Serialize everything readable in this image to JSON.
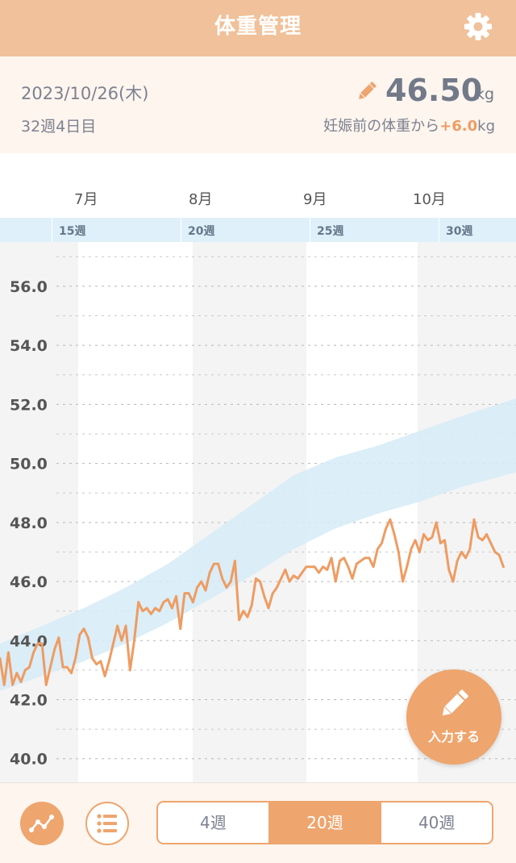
{
  "header": {
    "title": "体重管理",
    "settings_icon": "gear-icon"
  },
  "summary": {
    "date": "2023/10/26(木)",
    "week_day": "32週4日目",
    "weight": "46.50",
    "weight_unit": "kg",
    "delta_prefix": "妊娠前の体重から",
    "delta_value": "+6.0",
    "delta_unit": "kg",
    "edit_icon": "pencil-icon"
  },
  "timeline": {
    "months": [
      "7月",
      "8月",
      "9月",
      "10月"
    ],
    "weeks": [
      "15週",
      "20週",
      "25週",
      "30週"
    ]
  },
  "colors": {
    "accent": "#eea56e",
    "header": "#f0c19a",
    "range_band": "#d6ebf7",
    "line": "#ee9c63"
  },
  "chart_data": {
    "type": "line",
    "x_axis": "day",
    "xlim": [
      0,
      123
    ],
    "ylim": [
      39.2,
      57.5
    ],
    "yticks": [
      "56.0",
      "54.0",
      "52.0",
      "50.0",
      "48.0",
      "46.0",
      "44.0",
      "42.0",
      "40.0"
    ],
    "ytick_values": [
      56,
      54,
      52,
      50,
      48,
      46,
      44,
      42,
      40
    ],
    "grid": true,
    "band": {
      "name": "recommended range",
      "x": [
        0,
        10,
        20,
        30,
        40,
        50,
        60,
        70,
        80,
        90,
        100,
        110,
        123
      ],
      "lower": [
        42.3,
        42.8,
        43.3,
        43.9,
        44.6,
        45.4,
        46.2,
        47.1,
        47.8,
        48.3,
        48.7,
        49.2,
        49.7
      ],
      "upper": [
        43.9,
        44.5,
        45.1,
        45.8,
        46.6,
        47.6,
        48.6,
        49.6,
        50.2,
        50.6,
        51.1,
        51.6,
        52.2
      ]
    },
    "series": [
      {
        "values": [
          [
            0,
            43.4
          ],
          [
            1,
            42.5
          ],
          [
            2,
            43.6
          ],
          [
            3,
            42.5
          ],
          [
            4,
            42.9
          ],
          [
            5,
            42.6
          ],
          [
            6,
            43.0
          ],
          [
            7,
            43.1
          ],
          [
            8,
            43.6
          ],
          [
            9,
            43.9
          ],
          [
            10,
            43.9
          ],
          [
            11,
            42.5
          ],
          [
            12,
            43.1
          ],
          [
            13,
            43.7
          ],
          [
            14,
            44.1
          ],
          [
            15,
            43.1
          ],
          [
            16,
            43.1
          ],
          [
            17,
            42.9
          ],
          [
            18,
            43.4
          ],
          [
            19,
            44.2
          ],
          [
            20,
            44.4
          ],
          [
            21,
            44.1
          ],
          [
            22,
            43.4
          ],
          [
            23,
            43.2
          ],
          [
            24,
            43.3
          ],
          [
            25,
            42.8
          ],
          [
            26,
            43.3
          ],
          [
            27,
            43.9
          ],
          [
            28,
            44.5
          ],
          [
            29,
            44.0
          ],
          [
            30,
            44.5
          ],
          [
            31,
            43.0
          ],
          [
            32,
            44.0
          ],
          [
            33,
            45.3
          ],
          [
            34,
            45.0
          ],
          [
            35,
            45.1
          ],
          [
            36,
            44.9
          ],
          [
            37,
            45.1
          ],
          [
            38,
            45.0
          ],
          [
            39,
            45.3
          ],
          [
            40,
            45.4
          ],
          [
            41,
            45.1
          ],
          [
            42,
            45.5
          ],
          [
            43,
            44.4
          ],
          [
            44,
            45.6
          ],
          [
            45,
            45.6
          ],
          [
            46,
            45.3
          ],
          [
            47,
            45.8
          ],
          [
            48,
            46.0
          ],
          [
            49,
            45.7
          ],
          [
            50,
            46.3
          ],
          [
            51,
            46.6
          ],
          [
            52,
            46.6
          ],
          [
            53,
            46.1
          ],
          [
            54,
            45.8
          ],
          [
            55,
            46.0
          ],
          [
            56,
            46.7
          ],
          [
            57,
            44.7
          ],
          [
            58,
            45.0
          ],
          [
            59,
            44.8
          ],
          [
            60,
            45.2
          ],
          [
            61,
            46.1
          ],
          [
            62,
            46.0
          ],
          [
            63,
            45.5
          ],
          [
            64,
            45.1
          ],
          [
            65,
            45.6
          ],
          [
            66,
            45.8
          ],
          [
            67,
            46.1
          ],
          [
            68,
            46.4
          ],
          [
            69,
            46.0
          ],
          [
            70,
            46.2
          ],
          [
            71,
            46.1
          ],
          [
            72,
            46.3
          ],
          [
            73,
            46.5
          ],
          [
            74,
            46.5
          ],
          [
            75,
            46.5
          ],
          [
            76,
            46.3
          ],
          [
            77,
            46.5
          ],
          [
            78,
            46.4
          ],
          [
            79,
            46.8
          ],
          [
            80,
            46.0
          ],
          [
            81,
            46.7
          ],
          [
            82,
            46.8
          ],
          [
            83,
            46.5
          ],
          [
            84,
            46.1
          ],
          [
            85,
            46.6
          ],
          [
            86,
            46.7
          ],
          [
            87,
            46.8
          ],
          [
            88,
            46.8
          ],
          [
            89,
            46.5
          ],
          [
            90,
            47.1
          ],
          [
            91,
            47.3
          ],
          [
            92,
            47.8
          ],
          [
            93,
            48.1
          ],
          [
            94,
            47.6
          ],
          [
            95,
            47.0
          ],
          [
            96,
            46.0
          ],
          [
            97,
            46.5
          ],
          [
            98,
            47.1
          ],
          [
            99,
            47.4
          ],
          [
            100,
            47.0
          ],
          [
            101,
            47.6
          ],
          [
            102,
            47.4
          ],
          [
            103,
            47.5
          ],
          [
            104,
            48.0
          ],
          [
            105,
            47.3
          ],
          [
            106,
            47.4
          ],
          [
            107,
            46.4
          ],
          [
            108,
            46.0
          ],
          [
            109,
            46.7
          ],
          [
            110,
            47.0
          ],
          [
            111,
            46.8
          ],
          [
            112,
            47.1
          ],
          [
            113,
            48.1
          ],
          [
            114,
            47.5
          ],
          [
            115,
            47.4
          ],
          [
            116,
            47.6
          ],
          [
            117,
            47.3
          ],
          [
            118,
            47.0
          ],
          [
            119,
            46.9
          ],
          [
            120,
            46.5
          ]
        ]
      }
    ]
  },
  "fab": {
    "label": "入力する",
    "icon": "pencil-icon"
  },
  "bottom": {
    "graph_icon": "line-chart-icon",
    "list_icon": "list-icon",
    "segments": [
      "4週",
      "20週",
      "40週"
    ],
    "active_segment": "20週"
  }
}
